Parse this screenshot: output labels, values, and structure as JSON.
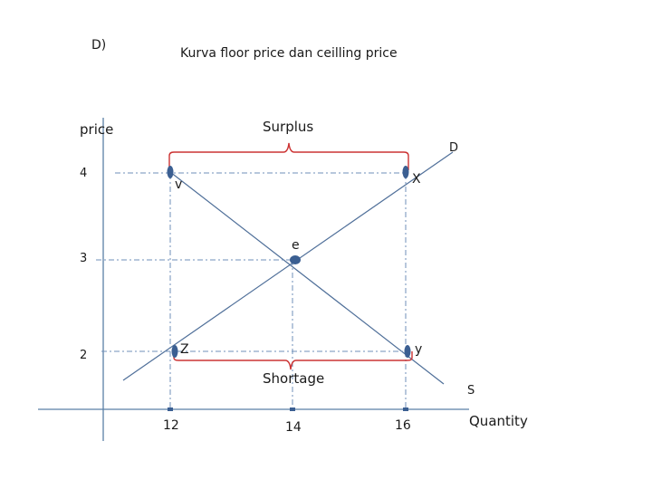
{
  "slide": {
    "letter": "D)",
    "title": "Kurva floor price dan ceilling price",
    "y_axis_label": "price",
    "x_axis_label": "Quantity"
  },
  "curves": {
    "demand_label": "D",
    "supply_label": "S"
  },
  "annotations": {
    "surplus": "Surplus",
    "shortage": "Shortage",
    "equilibrium": "e",
    "point_v": "v",
    "point_x": "X",
    "point_z": "Z",
    "point_y": "y"
  },
  "ticks": {
    "price": [
      "4",
      "3",
      "2"
    ],
    "quantity": [
      "12",
      "14",
      "16"
    ]
  },
  "colors": {
    "axis": "#5b7fa6",
    "line": "#4f6f99",
    "guide": "#6f8fb8",
    "marker": "#3b5f92",
    "brace": "#cc3333"
  }
}
